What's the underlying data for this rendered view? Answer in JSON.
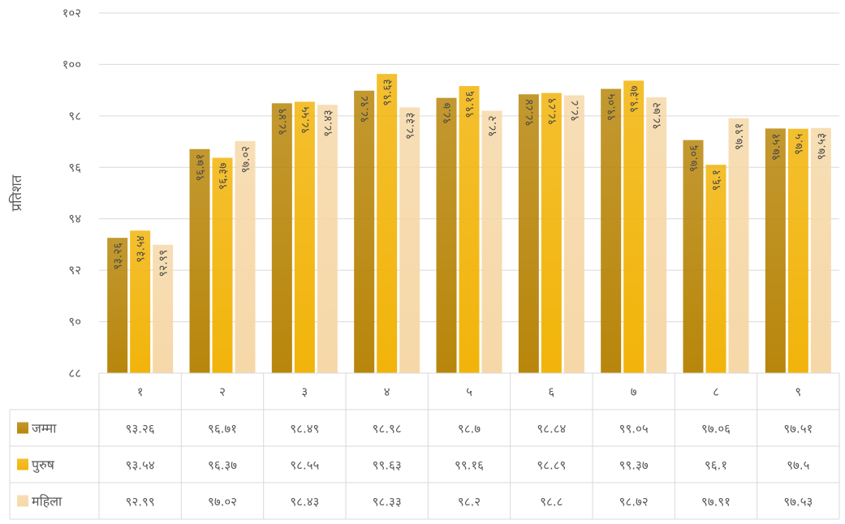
{
  "colors": {
    "total": "#b8860b",
    "male": "#f2b40a",
    "female": "#f6d8a8"
  },
  "chart_data": {
    "type": "bar",
    "ylabel": "प्रतिशत",
    "ylim": [
      88,
      102
    ],
    "ytick_labels": [
      "८८",
      "९०",
      "९२",
      "९४",
      "९६",
      "९८",
      "१००",
      "१०२"
    ],
    "categories": [
      "१",
      "२",
      "३",
      "४",
      "५",
      "६",
      "७",
      "८",
      "९"
    ],
    "series": [
      {
        "name": "जम्मा",
        "key": "total",
        "values": [
          93.26,
          96.71,
          98.49,
          98.98,
          98.7,
          98.84,
          99.05,
          97.06,
          97.51
        ],
        "labels": [
          "९३.२६",
          "९६.७१",
          "९८.४९",
          "९८.९८",
          "९८.७",
          "९८.८४",
          "९९.०५",
          "९७.०६",
          "९७.५१"
        ]
      },
      {
        "name": "पुरुष",
        "key": "male",
        "values": [
          93.54,
          96.37,
          98.55,
          99.63,
          99.16,
          98.89,
          99.37,
          96.1,
          97.5
        ],
        "labels": [
          "९३.५४",
          "९६.३७",
          "९८.५५",
          "९९.६३",
          "९९.१६",
          "९८.८९",
          "९९.३७",
          "९६.१",
          "९७.५"
        ]
      },
      {
        "name": "महिला",
        "key": "female",
        "values": [
          92.99,
          97.02,
          98.43,
          98.33,
          98.2,
          98.8,
          98.72,
          97.91,
          97.53
        ],
        "labels": [
          "९२.९९",
          "९७.०२",
          "९८.४३",
          "९८.३३",
          "९८.२",
          "९८.८",
          "९८.७२",
          "९७.९१",
          "९७.५३"
        ]
      }
    ],
    "grid": true,
    "legend": "table-left"
  }
}
